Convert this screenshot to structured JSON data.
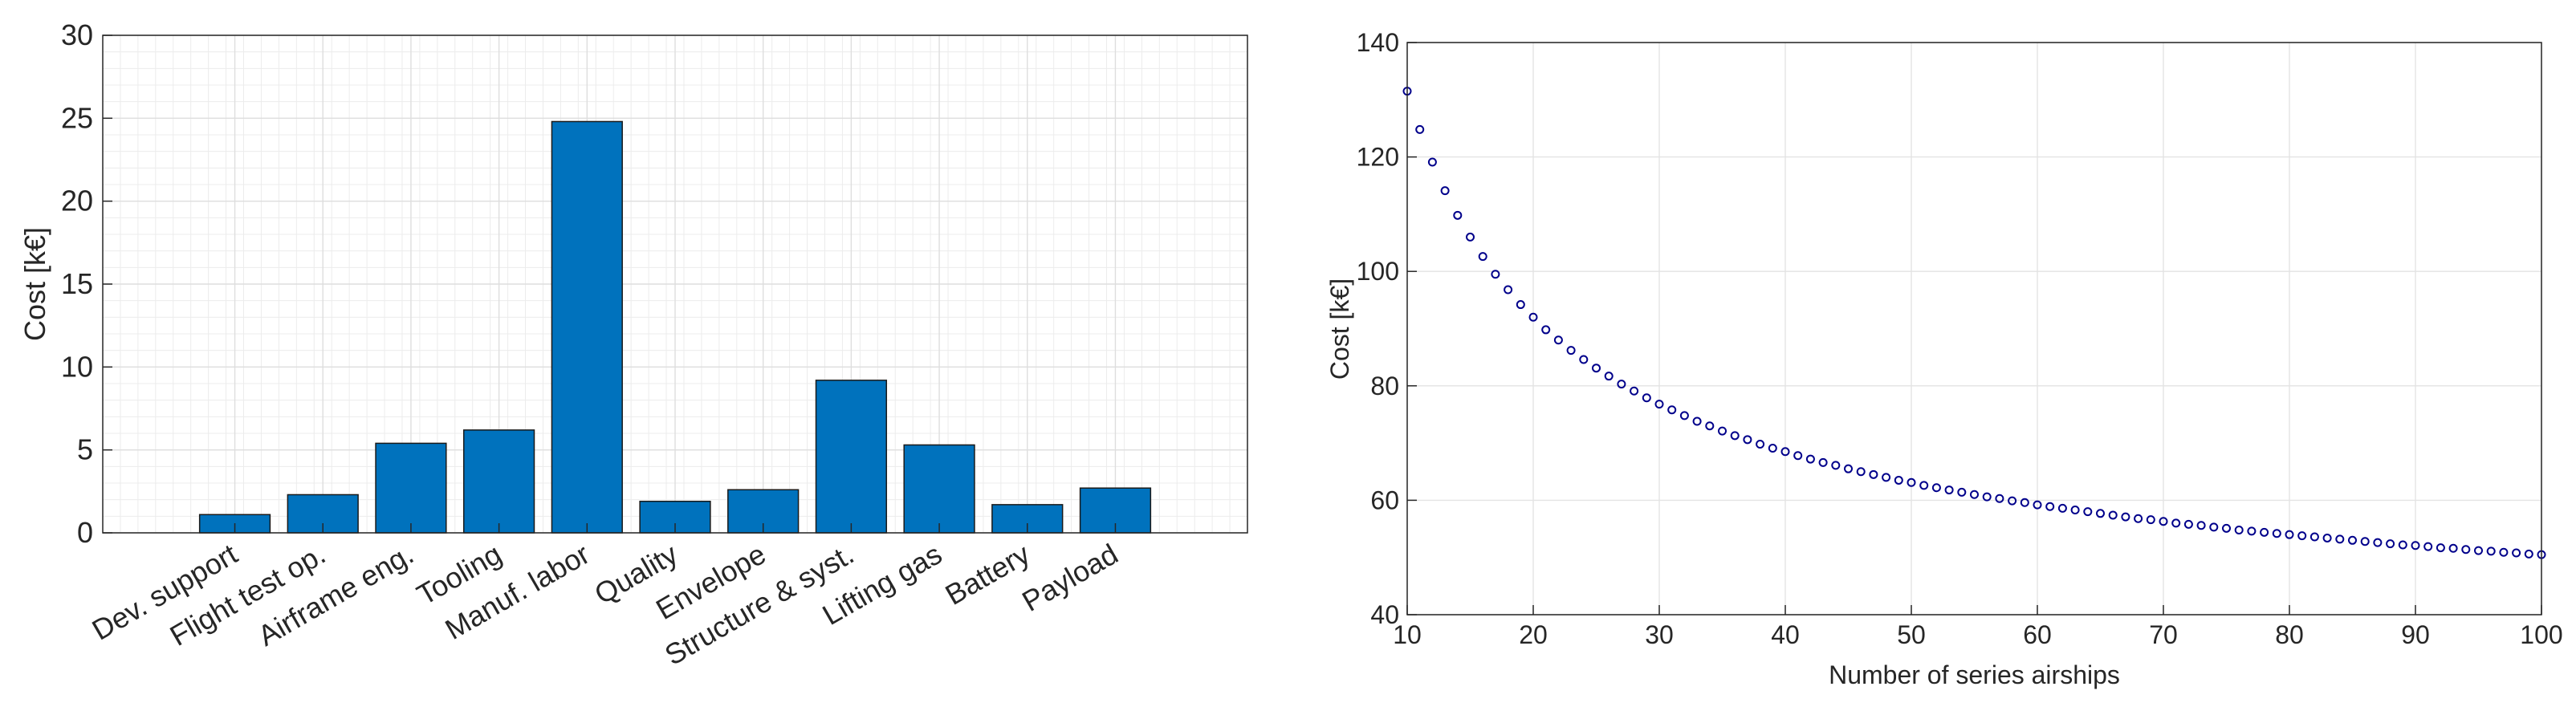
{
  "chart_data": [
    {
      "type": "bar",
      "xlabel": "",
      "ylabel": "Cost [k€]",
      "categories": [
        "Dev. support",
        "Flight test op.",
        "Airframe eng.",
        "Tooling",
        "Manuf. labor",
        "Quality",
        "Envelope",
        "Structure & syst.",
        "Lifting gas",
        "Battery",
        "Payload"
      ],
      "values": [
        1.1,
        2.3,
        5.4,
        6.2,
        24.8,
        1.9,
        2.6,
        9.2,
        5.3,
        1.7,
        2.7
      ],
      "ylim": [
        0,
        30
      ],
      "yticks": [
        0,
        5,
        10,
        15,
        20,
        25,
        30
      ],
      "grid": true,
      "minor_grid": true,
      "bar_color": "#0072BD"
    },
    {
      "type": "scatter",
      "xlabel": "Number of series airships",
      "ylabel": "Cost [k€]",
      "xlim": [
        10,
        100
      ],
      "ylim": [
        40,
        140
      ],
      "xticks": [
        10,
        20,
        30,
        40,
        50,
        60,
        70,
        80,
        90,
        100
      ],
      "yticks": [
        40,
        60,
        80,
        100,
        120,
        140
      ],
      "grid": true,
      "marker": "circle",
      "marker_color": "#00008B",
      "x": [
        10,
        11,
        12,
        13,
        14,
        15,
        16,
        17,
        18,
        19,
        20,
        21,
        22,
        23,
        24,
        25,
        26,
        27,
        28,
        29,
        30,
        31,
        32,
        33,
        34,
        35,
        36,
        37,
        38,
        39,
        40,
        41,
        42,
        43,
        44,
        45,
        46,
        47,
        48,
        49,
        50,
        51,
        52,
        53,
        54,
        55,
        56,
        57,
        58,
        59,
        60,
        61,
        62,
        63,
        64,
        65,
        66,
        67,
        68,
        69,
        70,
        71,
        72,
        73,
        74,
        75,
        76,
        77,
        78,
        79,
        80,
        81,
        82,
        83,
        84,
        85,
        86,
        87,
        88,
        89,
        90,
        91,
        92,
        93,
        94,
        95,
        96,
        97,
        98,
        99,
        100
      ],
      "y": [
        131.5,
        124.8,
        119.1,
        114.1,
        109.8,
        106.0,
        102.6,
        99.5,
        96.8,
        94.2,
        92.0,
        89.8,
        88.0,
        86.2,
        84.6,
        83.1,
        81.7,
        80.3,
        79.1,
        77.9,
        76.8,
        75.8,
        74.8,
        73.8,
        73.0,
        72.1,
        71.3,
        70.6,
        69.8,
        69.1,
        68.5,
        67.8,
        67.2,
        66.6,
        66.1,
        65.5,
        65.0,
        64.5,
        64.0,
        63.5,
        63.1,
        62.6,
        62.2,
        61.8,
        61.4,
        61.0,
        60.6,
        60.3,
        59.9,
        59.6,
        59.2,
        58.9,
        58.6,
        58.3,
        58.0,
        57.7,
        57.4,
        57.1,
        56.8,
        56.6,
        56.3,
        56.0,
        55.8,
        55.6,
        55.3,
        55.1,
        54.8,
        54.6,
        54.4,
        54.2,
        54.0,
        53.8,
        53.6,
        53.4,
        53.2,
        53.0,
        52.8,
        52.6,
        52.4,
        52.2,
        52.1,
        51.9,
        51.7,
        51.6,
        51.4,
        51.2,
        51.1,
        50.9,
        50.8,
        50.6,
        50.5
      ]
    }
  ]
}
